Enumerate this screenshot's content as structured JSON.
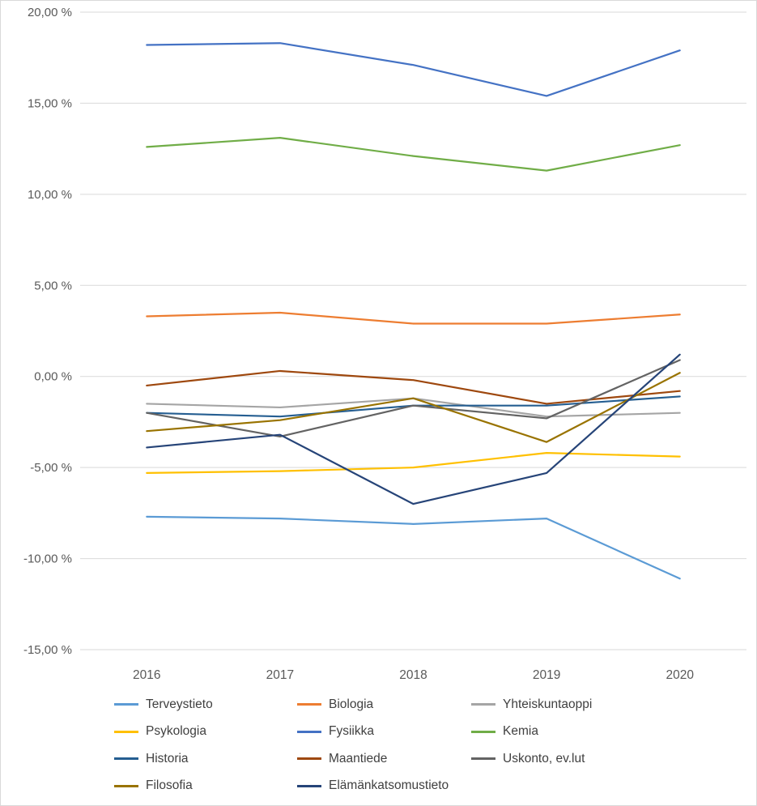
{
  "chart_data": {
    "type": "line",
    "title": "",
    "categories": [
      "2016",
      "2017",
      "2018",
      "2019",
      "2020"
    ],
    "series": [
      {
        "name": "Terveystieto",
        "color": "#5B9BD5",
        "values": [
          -7.7,
          -7.8,
          -8.1,
          -7.8,
          -11.1
        ]
      },
      {
        "name": "Biologia",
        "color": "#ED7D31",
        "values": [
          3.3,
          3.5,
          2.9,
          2.9,
          3.4
        ]
      },
      {
        "name": "Yhteiskuntaoppi",
        "color": "#A5A5A5",
        "values": [
          -1.5,
          -1.7,
          -1.2,
          -2.2,
          -2.0
        ]
      },
      {
        "name": "Psykologia",
        "color": "#FFC000",
        "values": [
          -5.3,
          -5.2,
          -5.0,
          -4.2,
          -4.4
        ]
      },
      {
        "name": "Fysiikka",
        "color": "#4472C4",
        "values": [
          18.2,
          18.3,
          17.1,
          15.4,
          17.9
        ]
      },
      {
        "name": "Kemia",
        "color": "#70AD47",
        "values": [
          12.6,
          13.1,
          12.1,
          11.3,
          12.7
        ]
      },
      {
        "name": "Historia",
        "color": "#255E91",
        "values": [
          -2.0,
          -2.2,
          -1.6,
          -1.6,
          -1.1
        ]
      },
      {
        "name": "Maantiede",
        "color": "#9E480E",
        "values": [
          -0.5,
          0.3,
          -0.2,
          -1.5,
          -0.8
        ]
      },
      {
        "name": "Uskonto, ev.lut",
        "color": "#636363",
        "values": [
          -2.0,
          -3.3,
          -1.6,
          -2.3,
          0.9
        ]
      },
      {
        "name": "Filosofia",
        "color": "#997300",
        "values": [
          -3.0,
          -2.4,
          -1.2,
          -3.6,
          0.2
        ]
      },
      {
        "name": "Elämänkatsomustieto",
        "color": "#264478",
        "values": [
          -3.9,
          -3.2,
          -7.0,
          -5.3,
          1.2
        ]
      }
    ],
    "y_ticks": [
      20,
      15,
      10,
      5,
      0,
      -5,
      -10,
      -15
    ],
    "y_tick_labels": [
      "20,00 %",
      "15,00 %",
      "10,00 %",
      "5,00 %",
      "0,00 %",
      "-5,00 %",
      "-10,00 %",
      "-15,00 %"
    ],
    "ylim": [
      -15,
      20
    ],
    "xlabel": "",
    "ylabel": "",
    "grid": true,
    "grid_color": "#d9d9d9",
    "axis_text_color": "#595959",
    "legend_position": "bottom"
  }
}
